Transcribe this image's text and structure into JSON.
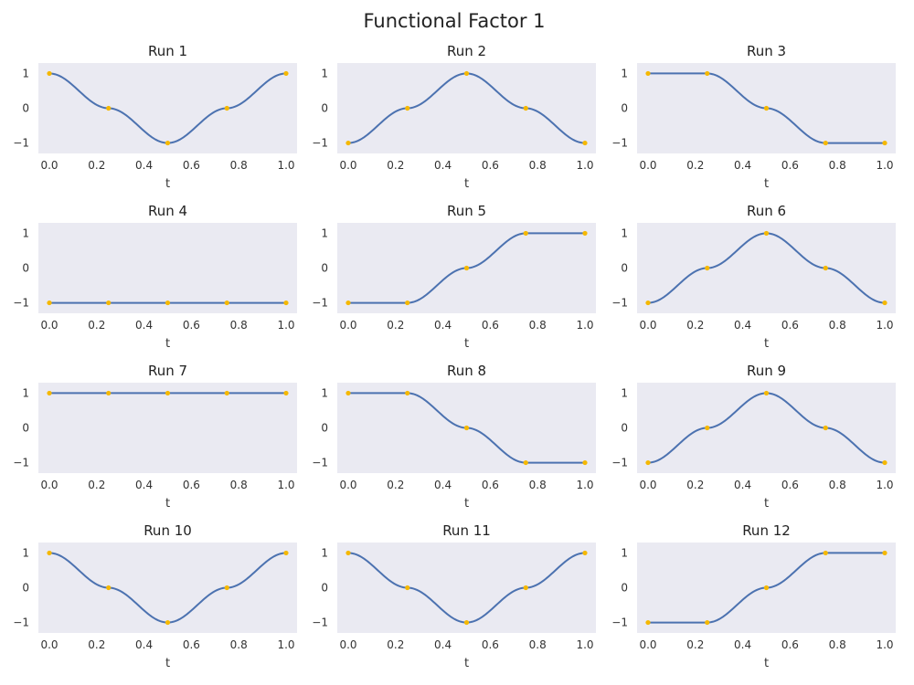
{
  "figure": {
    "title": "Functional Factor 1"
  },
  "colors": {
    "background": "#eaeaf2",
    "line": "#4c72b0",
    "points": "#f5b800"
  },
  "chart_data": [
    {
      "type": "line",
      "title": "Run 1",
      "xlabel": "t",
      "ylabel": "",
      "xlim": [
        0,
        1
      ],
      "ylim": [
        -1.3,
        1.3
      ],
      "grid": false,
      "x_ticks": [
        "0.0",
        "0.2",
        "0.4",
        "0.6",
        "0.8",
        "1.0"
      ],
      "y_ticks": [
        "1",
        "0",
        "−1"
      ],
      "curve": "cosine",
      "points": [
        {
          "x": 0,
          "y": 1
        },
        {
          "x": 0.25,
          "y": 0
        },
        {
          "x": 0.5,
          "y": -1
        },
        {
          "x": 0.75,
          "y": 0
        },
        {
          "x": 1,
          "y": 1
        }
      ]
    },
    {
      "type": "line",
      "title": "Run 2",
      "xlabel": "t",
      "ylabel": "",
      "xlim": [
        0,
        1
      ],
      "ylim": [
        -1.3,
        1.3
      ],
      "grid": false,
      "x_ticks": [
        "0.0",
        "0.2",
        "0.4",
        "0.6",
        "0.8",
        "1.0"
      ],
      "y_ticks": [
        "1",
        "0",
        "−1"
      ],
      "curve": "cosine",
      "points": [
        {
          "x": 0,
          "y": -1
        },
        {
          "x": 0.25,
          "y": 0
        },
        {
          "x": 0.5,
          "y": 1
        },
        {
          "x": 0.75,
          "y": 0
        },
        {
          "x": 1,
          "y": -1
        }
      ]
    },
    {
      "type": "line",
      "title": "Run 3",
      "xlabel": "t",
      "ylabel": "",
      "xlim": [
        0,
        1
      ],
      "ylim": [
        -1.3,
        1.3
      ],
      "grid": false,
      "x_ticks": [
        "0.0",
        "0.2",
        "0.4",
        "0.6",
        "0.8",
        "1.0"
      ],
      "y_ticks": [
        "1",
        "0",
        "−1"
      ],
      "curve": "cosine",
      "points": [
        {
          "x": 0,
          "y": 1
        },
        {
          "x": 0.25,
          "y": 1
        },
        {
          "x": 0.5,
          "y": 0
        },
        {
          "x": 0.75,
          "y": -1
        },
        {
          "x": 1,
          "y": -1
        }
      ]
    },
    {
      "type": "line",
      "title": "Run 4",
      "xlabel": "t",
      "ylabel": "",
      "xlim": [
        0,
        1
      ],
      "ylim": [
        -1.3,
        1.3
      ],
      "grid": false,
      "x_ticks": [
        "0.0",
        "0.2",
        "0.4",
        "0.6",
        "0.8",
        "1.0"
      ],
      "y_ticks": [
        "1",
        "0",
        "−1"
      ],
      "curve": "cosine",
      "points": [
        {
          "x": 0,
          "y": -1
        },
        {
          "x": 0.25,
          "y": -1
        },
        {
          "x": 0.5,
          "y": -1
        },
        {
          "x": 0.75,
          "y": -1
        },
        {
          "x": 1,
          "y": -1
        }
      ]
    },
    {
      "type": "line",
      "title": "Run 5",
      "xlabel": "t",
      "ylabel": "",
      "xlim": [
        0,
        1
      ],
      "ylim": [
        -1.3,
        1.3
      ],
      "grid": false,
      "x_ticks": [
        "0.0",
        "0.2",
        "0.4",
        "0.6",
        "0.8",
        "1.0"
      ],
      "y_ticks": [
        "1",
        "0",
        "−1"
      ],
      "curve": "cosine",
      "points": [
        {
          "x": 0,
          "y": -1
        },
        {
          "x": 0.25,
          "y": -1
        },
        {
          "x": 0.5,
          "y": 0
        },
        {
          "x": 0.75,
          "y": 1
        },
        {
          "x": 1,
          "y": 1
        }
      ]
    },
    {
      "type": "line",
      "title": "Run 6",
      "xlabel": "t",
      "ylabel": "",
      "xlim": [
        0,
        1
      ],
      "ylim": [
        -1.3,
        1.3
      ],
      "grid": false,
      "x_ticks": [
        "0.0",
        "0.2",
        "0.4",
        "0.6",
        "0.8",
        "1.0"
      ],
      "y_ticks": [
        "1",
        "0",
        "−1"
      ],
      "curve": "cosine",
      "points": [
        {
          "x": 0,
          "y": -1
        },
        {
          "x": 0.25,
          "y": 0
        },
        {
          "x": 0.5,
          "y": 1
        },
        {
          "x": 0.75,
          "y": 0
        },
        {
          "x": 1,
          "y": -1
        }
      ]
    },
    {
      "type": "line",
      "title": "Run 7",
      "xlabel": "t",
      "ylabel": "",
      "xlim": [
        0,
        1
      ],
      "ylim": [
        -1.3,
        1.3
      ],
      "grid": false,
      "x_ticks": [
        "0.0",
        "0.2",
        "0.4",
        "0.6",
        "0.8",
        "1.0"
      ],
      "y_ticks": [
        "1",
        "0",
        "−1"
      ],
      "curve": "cosine",
      "points": [
        {
          "x": 0,
          "y": 1
        },
        {
          "x": 0.25,
          "y": 1
        },
        {
          "x": 0.5,
          "y": 1
        },
        {
          "x": 0.75,
          "y": 1
        },
        {
          "x": 1,
          "y": 1
        }
      ]
    },
    {
      "type": "line",
      "title": "Run 8",
      "xlabel": "t",
      "ylabel": "",
      "xlim": [
        0,
        1
      ],
      "ylim": [
        -1.3,
        1.3
      ],
      "grid": false,
      "x_ticks": [
        "0.0",
        "0.2",
        "0.4",
        "0.6",
        "0.8",
        "1.0"
      ],
      "y_ticks": [
        "1",
        "0",
        "−1"
      ],
      "curve": "cosine",
      "points": [
        {
          "x": 0,
          "y": 1
        },
        {
          "x": 0.25,
          "y": 1
        },
        {
          "x": 0.5,
          "y": 0
        },
        {
          "x": 0.75,
          "y": -1
        },
        {
          "x": 1,
          "y": -1
        }
      ]
    },
    {
      "type": "line",
      "title": "Run 9",
      "xlabel": "t",
      "ylabel": "",
      "xlim": [
        0,
        1
      ],
      "ylim": [
        -1.3,
        1.3
      ],
      "grid": false,
      "x_ticks": [
        "0.0",
        "0.2",
        "0.4",
        "0.6",
        "0.8",
        "1.0"
      ],
      "y_ticks": [
        "1",
        "0",
        "−1"
      ],
      "curve": "cosine",
      "points": [
        {
          "x": 0,
          "y": -1
        },
        {
          "x": 0.25,
          "y": 0
        },
        {
          "x": 0.5,
          "y": 1
        },
        {
          "x": 0.75,
          "y": 0
        },
        {
          "x": 1,
          "y": -1
        }
      ]
    },
    {
      "type": "line",
      "title": "Run 10",
      "xlabel": "t",
      "ylabel": "",
      "xlim": [
        0,
        1
      ],
      "ylim": [
        -1.3,
        1.3
      ],
      "grid": false,
      "x_ticks": [
        "0.0",
        "0.2",
        "0.4",
        "0.6",
        "0.8",
        "1.0"
      ],
      "y_ticks": [
        "1",
        "0",
        "−1"
      ],
      "curve": "cosine",
      "points": [
        {
          "x": 0,
          "y": 1
        },
        {
          "x": 0.25,
          "y": 0
        },
        {
          "x": 0.5,
          "y": -1
        },
        {
          "x": 0.75,
          "y": 0
        },
        {
          "x": 1,
          "y": 1
        }
      ]
    },
    {
      "type": "line",
      "title": "Run 11",
      "xlabel": "t",
      "ylabel": "",
      "xlim": [
        0,
        1
      ],
      "ylim": [
        -1.3,
        1.3
      ],
      "grid": false,
      "x_ticks": [
        "0.0",
        "0.2",
        "0.4",
        "0.6",
        "0.8",
        "1.0"
      ],
      "y_ticks": [
        "1",
        "0",
        "−1"
      ],
      "curve": "cosine",
      "points": [
        {
          "x": 0,
          "y": 1
        },
        {
          "x": 0.25,
          "y": 0
        },
        {
          "x": 0.5,
          "y": -1
        },
        {
          "x": 0.75,
          "y": 0
        },
        {
          "x": 1,
          "y": 1
        }
      ]
    },
    {
      "type": "line",
      "title": "Run 12",
      "xlabel": "t",
      "ylabel": "",
      "xlim": [
        0,
        1
      ],
      "ylim": [
        -1.3,
        1.3
      ],
      "grid": false,
      "x_ticks": [
        "0.0",
        "0.2",
        "0.4",
        "0.6",
        "0.8",
        "1.0"
      ],
      "y_ticks": [
        "1",
        "0",
        "−1"
      ],
      "curve": "cosine",
      "points": [
        {
          "x": 0,
          "y": -1
        },
        {
          "x": 0.25,
          "y": -1
        },
        {
          "x": 0.5,
          "y": 0
        },
        {
          "x": 0.75,
          "y": 1
        },
        {
          "x": 1,
          "y": 1
        }
      ]
    }
  ]
}
